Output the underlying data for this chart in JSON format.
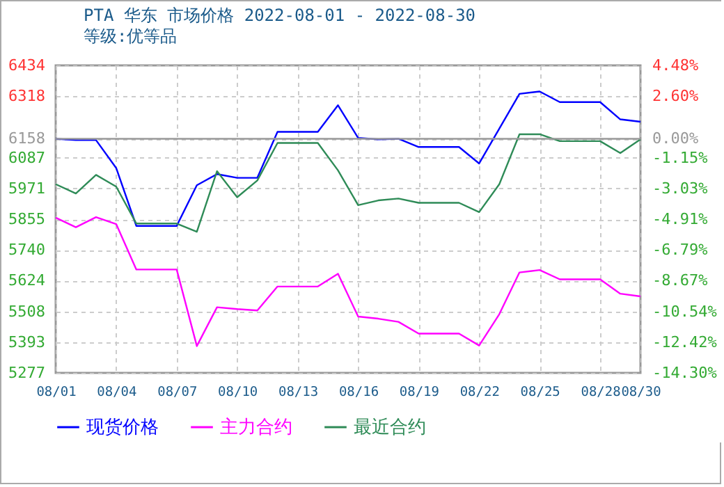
{
  "chart_data": {
    "type": "line",
    "title": "PTA 华东 市场价格 2022-08-01 - 2022-08-30",
    "subtitle": "等级:优等品",
    "x": [
      "2022-08-01",
      "2022-08-02",
      "2022-08-03",
      "2022-08-04",
      "2022-08-05",
      "2022-08-06",
      "2022-08-07",
      "2022-08-08",
      "2022-08-09",
      "2022-08-10",
      "2022-08-11",
      "2022-08-12",
      "2022-08-13",
      "2022-08-14",
      "2022-08-15",
      "2022-08-16",
      "2022-08-17",
      "2022-08-18",
      "2022-08-19",
      "2022-08-20",
      "2022-08-21",
      "2022-08-22",
      "2022-08-23",
      "2022-08-24",
      "2022-08-25",
      "2022-08-26",
      "2022-08-27",
      "2022-08-28",
      "2022-08-29",
      "2022-08-30"
    ],
    "series": [
      {
        "name": "现货价格",
        "color": "#0000ff",
        "values": [
          6158,
          6153,
          6153,
          6048,
          5830,
          5830,
          5830,
          5983,
          6025,
          6011,
          6011,
          6184,
          6184,
          6184,
          6284,
          6161,
          6156,
          6158,
          6127,
          6127,
          6127,
          6065,
          6196,
          6327,
          6336,
          6296,
          6296,
          6296,
          6231,
          6222
        ]
      },
      {
        "name": "主力合约",
        "color": "#ff00ff",
        "values": [
          5861,
          5825,
          5863,
          5837,
          5666,
          5666,
          5666,
          5378,
          5524,
          5517,
          5512,
          5602,
          5602,
          5602,
          5650,
          5489,
          5481,
          5469,
          5425,
          5425,
          5425,
          5380,
          5498,
          5655,
          5664,
          5629,
          5629,
          5629,
          5575,
          5565
        ]
      },
      {
        "name": "最近合约",
        "color": "#2e8b57",
        "values": [
          5987,
          5952,
          6022,
          5978,
          5839,
          5839,
          5839,
          5808,
          6036,
          5938,
          6001,
          6142,
          6142,
          6142,
          6039,
          5908,
          5926,
          5933,
          5917,
          5917,
          5917,
          5882,
          5987,
          6175,
          6175,
          6149,
          6149,
          6149,
          6104,
          6156
        ]
      }
    ],
    "xlim": [
      "2022-08-01",
      "2022-08-30"
    ],
    "xticks": [
      {
        "value": "2022-08-01",
        "label": "08/01"
      },
      {
        "value": "2022-08-04",
        "label": "08/04"
      },
      {
        "value": "2022-08-07",
        "label": "08/07"
      },
      {
        "value": "2022-08-10",
        "label": "08/10"
      },
      {
        "value": "2022-08-13",
        "label": "08/13"
      },
      {
        "value": "2022-08-16",
        "label": "08/16"
      },
      {
        "value": "2022-08-19",
        "label": "08/19"
      },
      {
        "value": "2022-08-22",
        "label": "08/22"
      },
      {
        "value": "2022-08-25",
        "label": "08/25"
      },
      {
        "value": "2022-08-28",
        "label": "08/28"
      },
      {
        "value": "2022-08-30",
        "label": "08/30"
      }
    ],
    "ylim": [
      5277,
      6434
    ],
    "yticks": [
      5277,
      5393,
      5508,
      5624,
      5740,
      5855,
      5971,
      6087,
      6158,
      6318,
      6434
    ],
    "y2lim": [
      -14.3,
      4.48
    ],
    "y2ticks": [
      {
        "value": -14.3,
        "label": "-14.30%"
      },
      {
        "value": -12.42,
        "label": "-12.42%"
      },
      {
        "value": -10.54,
        "label": "-10.54%"
      },
      {
        "value": -8.67,
        "label": "-8.67%"
      },
      {
        "value": -6.79,
        "label": "-6.79%"
      },
      {
        "value": -4.91,
        "label": "-4.91%"
      },
      {
        "value": -3.03,
        "label": "-3.03%"
      },
      {
        "value": -1.15,
        "label": "-1.15%"
      },
      {
        "value": 0,
        "label": "0.00%"
      },
      {
        "value": 2.6,
        "label": "2.60%"
      },
      {
        "value": 4.48,
        "label": "4.48%"
      }
    ],
    "ref_lines": [
      {
        "axis": "y",
        "value": 6158,
        "color": "#999999"
      }
    ],
    "grid": true,
    "legend": "bottom",
    "marker": "none",
    "line_style": "solid"
  }
}
